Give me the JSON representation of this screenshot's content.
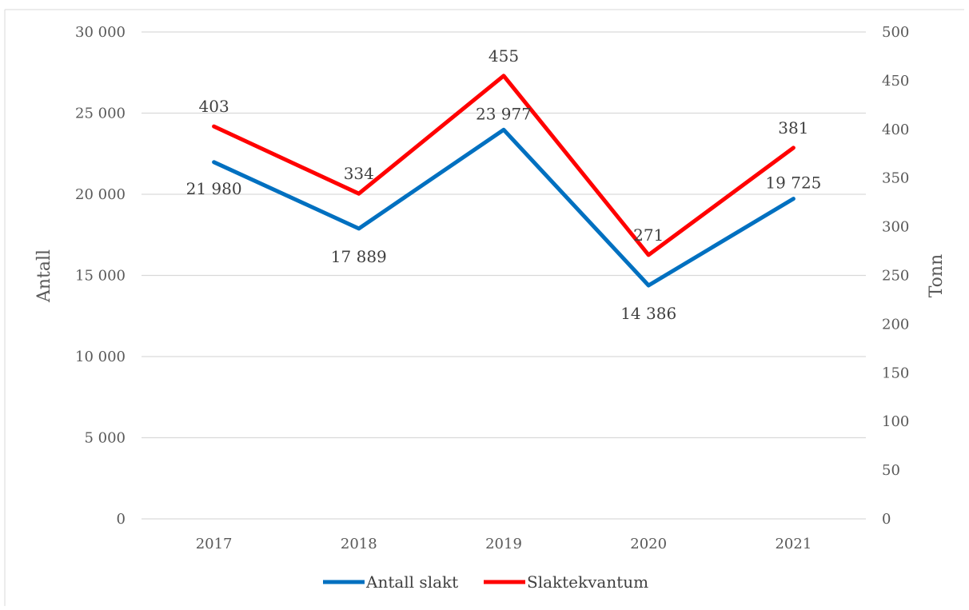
{
  "chart_data": {
    "type": "line",
    "categories": [
      "2017",
      "2018",
      "2019",
      "2020",
      "2021"
    ],
    "series": [
      {
        "name": "Antall slakt",
        "axis": "left",
        "color": "#0070c0",
        "values": [
          21980,
          17889,
          23977,
          14386,
          19725
        ],
        "labels": [
          "21 980",
          "17 889",
          "23 977",
          "14 386",
          "19 725"
        ]
      },
      {
        "name": "Slaktekvantum",
        "axis": "right",
        "color": "#ff0000",
        "values": [
          403,
          334,
          455,
          271,
          381
        ],
        "labels": [
          "403",
          "334",
          "455",
          "271",
          "381"
        ]
      }
    ],
    "ylabel": "Antall",
    "y2label": "Tonn",
    "ylim": [
      0,
      30000
    ],
    "y2lim": [
      0,
      500
    ],
    "y_ticks": [
      "0",
      "5 000",
      "10 000",
      "15 000",
      "20 000",
      "25 000",
      "30 000"
    ],
    "y2_ticks": [
      "0",
      "50",
      "100",
      "150",
      "200",
      "250",
      "300",
      "350",
      "400",
      "450",
      "500"
    ],
    "grid": true,
    "legend_position": "bottom"
  }
}
